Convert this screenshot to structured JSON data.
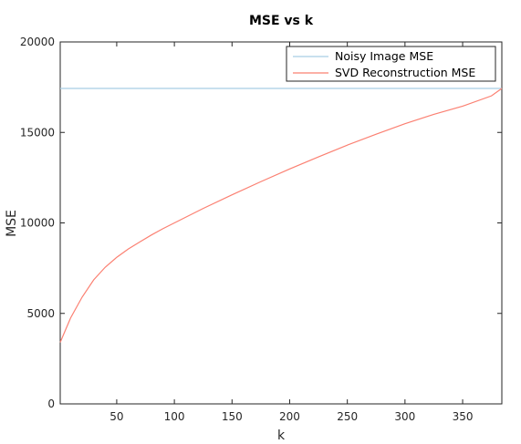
{
  "chart_data": {
    "type": "line",
    "title": "MSE vs k",
    "xlabel": "k",
    "ylabel": "MSE",
    "xlim": [
      1,
      384
    ],
    "ylim": [
      0,
      20000
    ],
    "xticks": [
      50,
      100,
      150,
      200,
      250,
      300,
      350
    ],
    "yticks": [
      0,
      5000,
      10000,
      15000,
      20000
    ],
    "grid": false,
    "legend_position": "top-right",
    "series": [
      {
        "name": "Noisy Image MSE",
        "color": "#a6cee3",
        "x": [
          1,
          384
        ],
        "y": [
          17430,
          17430
        ]
      },
      {
        "name": "SVD Reconstruction MSE",
        "color": "#fb8072",
        "x": [
          1,
          10,
          20,
          30,
          40,
          50,
          60,
          70,
          80,
          90,
          100,
          125,
          150,
          175,
          200,
          225,
          250,
          275,
          300,
          325,
          350,
          375,
          384
        ],
        "y": [
          3400,
          4750,
          5900,
          6850,
          7550,
          8100,
          8560,
          8950,
          9330,
          9680,
          10000,
          10800,
          11550,
          12280,
          12980,
          13650,
          14300,
          14900,
          15480,
          16000,
          16450,
          17020,
          17430
        ]
      }
    ]
  }
}
